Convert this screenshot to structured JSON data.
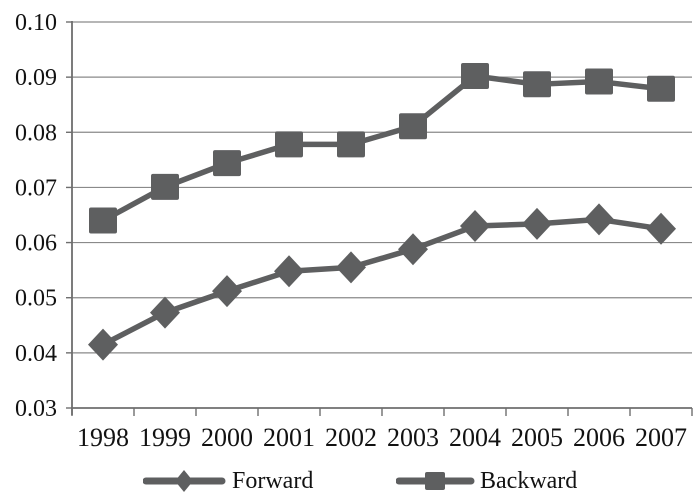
{
  "chart_data": {
    "type": "line",
    "title": "",
    "xlabel": "",
    "ylabel": "",
    "categories": [
      "1998",
      "1999",
      "2000",
      "2001",
      "2002",
      "2003",
      "2004",
      "2005",
      "2006",
      "2007"
    ],
    "series": [
      {
        "name": "Forward",
        "marker": "diamond",
        "values": [
          0.0415,
          0.0473,
          0.0512,
          0.0548,
          0.0555,
          0.0588,
          0.063,
          0.0634,
          0.0642,
          0.0625
        ]
      },
      {
        "name": "Backward",
        "marker": "square",
        "values": [
          0.064,
          0.0701,
          0.0744,
          0.0778,
          0.0778,
          0.0811,
          0.0902,
          0.0887,
          0.0892,
          0.0879
        ]
      }
    ],
    "ylim": [
      0.03,
      0.1
    ],
    "y_ticks": [
      "0.03",
      "0.04",
      "0.05",
      "0.06",
      "0.07",
      "0.08",
      "0.09",
      "0.10"
    ],
    "grid": "horizontal",
    "legend_position": "bottom"
  },
  "legend": {
    "items": [
      {
        "label": "Forward",
        "marker": "diamond"
      },
      {
        "label": "Backward",
        "marker": "square"
      }
    ]
  },
  "colors": {
    "series": "#5e5f60",
    "gridline": "#8a8a8a",
    "axis": "#6e6e6e",
    "text": "#121212",
    "background": "#ffffff"
  }
}
